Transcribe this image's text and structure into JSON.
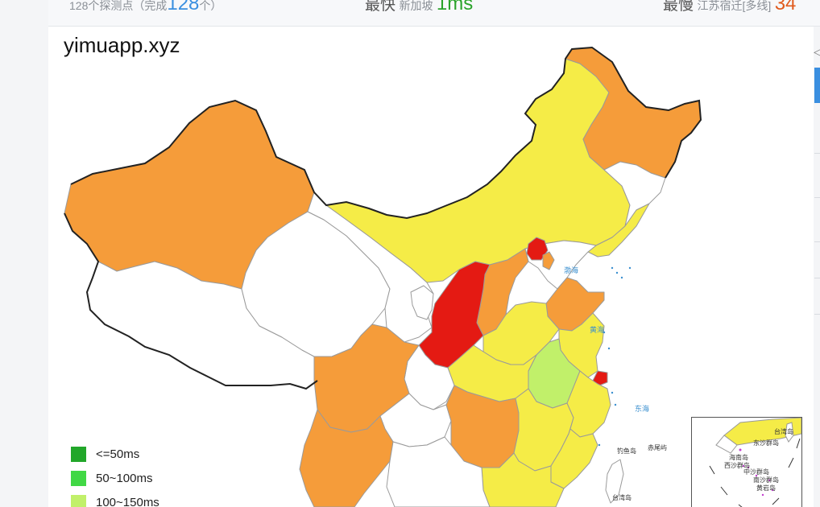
{
  "stats": {
    "probe_count_text": "128个探测点（完成",
    "probe_done": "128",
    "probe_tail": "个）",
    "fastest_label": "最快",
    "fastest_location": "新加坡",
    "fastest_value": "1ms",
    "slowest_label": "最慢",
    "slowest_location": "江苏宿迁[多线]",
    "slowest_value": "34"
  },
  "map": {
    "title": "yimuapp.xyz",
    "colors": {
      "red": "#e41a13",
      "orange": "#f59c3a",
      "yellow": "#f5ec47",
      "lightgreen": "#c1f06a",
      "white": "#ffffff",
      "border": "#9a9a9a",
      "sea_label": "#3a8fcf"
    },
    "regions": [
      {
        "name": "新疆",
        "level": "150~200ms"
      },
      {
        "name": "西藏",
        "level": "no-data"
      },
      {
        "name": "青海",
        "level": "no-data"
      },
      {
        "name": "甘肃",
        "level": "no-data"
      },
      {
        "name": "内蒙古",
        "level": "150~200ms-yellow"
      },
      {
        "name": "黑龙江",
        "level": "orange"
      },
      {
        "name": "吉林",
        "level": "no-data"
      },
      {
        "name": "辽宁",
        "level": "yellow"
      },
      {
        "name": "北京",
        "level": "red"
      },
      {
        "name": "天津",
        "level": "orange"
      },
      {
        "name": "河北",
        "level": "no-data"
      },
      {
        "name": "山西",
        "level": "orange"
      },
      {
        "name": "陕西",
        "level": "red"
      },
      {
        "name": "山东",
        "level": "orange"
      },
      {
        "name": "河南",
        "level": "yellow"
      },
      {
        "name": "安徽",
        "level": "100~150ms"
      },
      {
        "name": "江苏",
        "level": "yellow"
      },
      {
        "name": "上海",
        "level": "red"
      },
      {
        "name": "四川",
        "level": "orange"
      },
      {
        "name": "重庆",
        "level": "no-data"
      },
      {
        "name": "湖北",
        "level": "yellow"
      },
      {
        "name": "湖南",
        "level": "orange"
      },
      {
        "name": "浙江",
        "level": "yellow"
      },
      {
        "name": "江西",
        "level": "yellow"
      },
      {
        "name": "福建",
        "level": "yellow"
      },
      {
        "name": "云南",
        "level": "orange"
      },
      {
        "name": "贵州",
        "level": "no-data"
      },
      {
        "name": "广东",
        "level": "yellow"
      },
      {
        "name": "宁夏",
        "level": "no-data"
      }
    ],
    "sea_labels": [
      "渤海",
      "黄海",
      "东海"
    ],
    "island_labels": [
      "钓鱼岛",
      "赤尾屿",
      "台湾岛"
    ],
    "inset": {
      "labels": [
        "台湾岛",
        "东沙群岛",
        "海南岛",
        "西沙群岛",
        "中沙群岛",
        "南沙群岛",
        "黄岩岛"
      ]
    }
  },
  "legend": [
    {
      "label": "<=50ms",
      "color": "#22a72a"
    },
    {
      "label": "50~100ms",
      "color": "#41d845"
    },
    {
      "label": "100~150ms",
      "color": "#c1f06a"
    }
  ]
}
